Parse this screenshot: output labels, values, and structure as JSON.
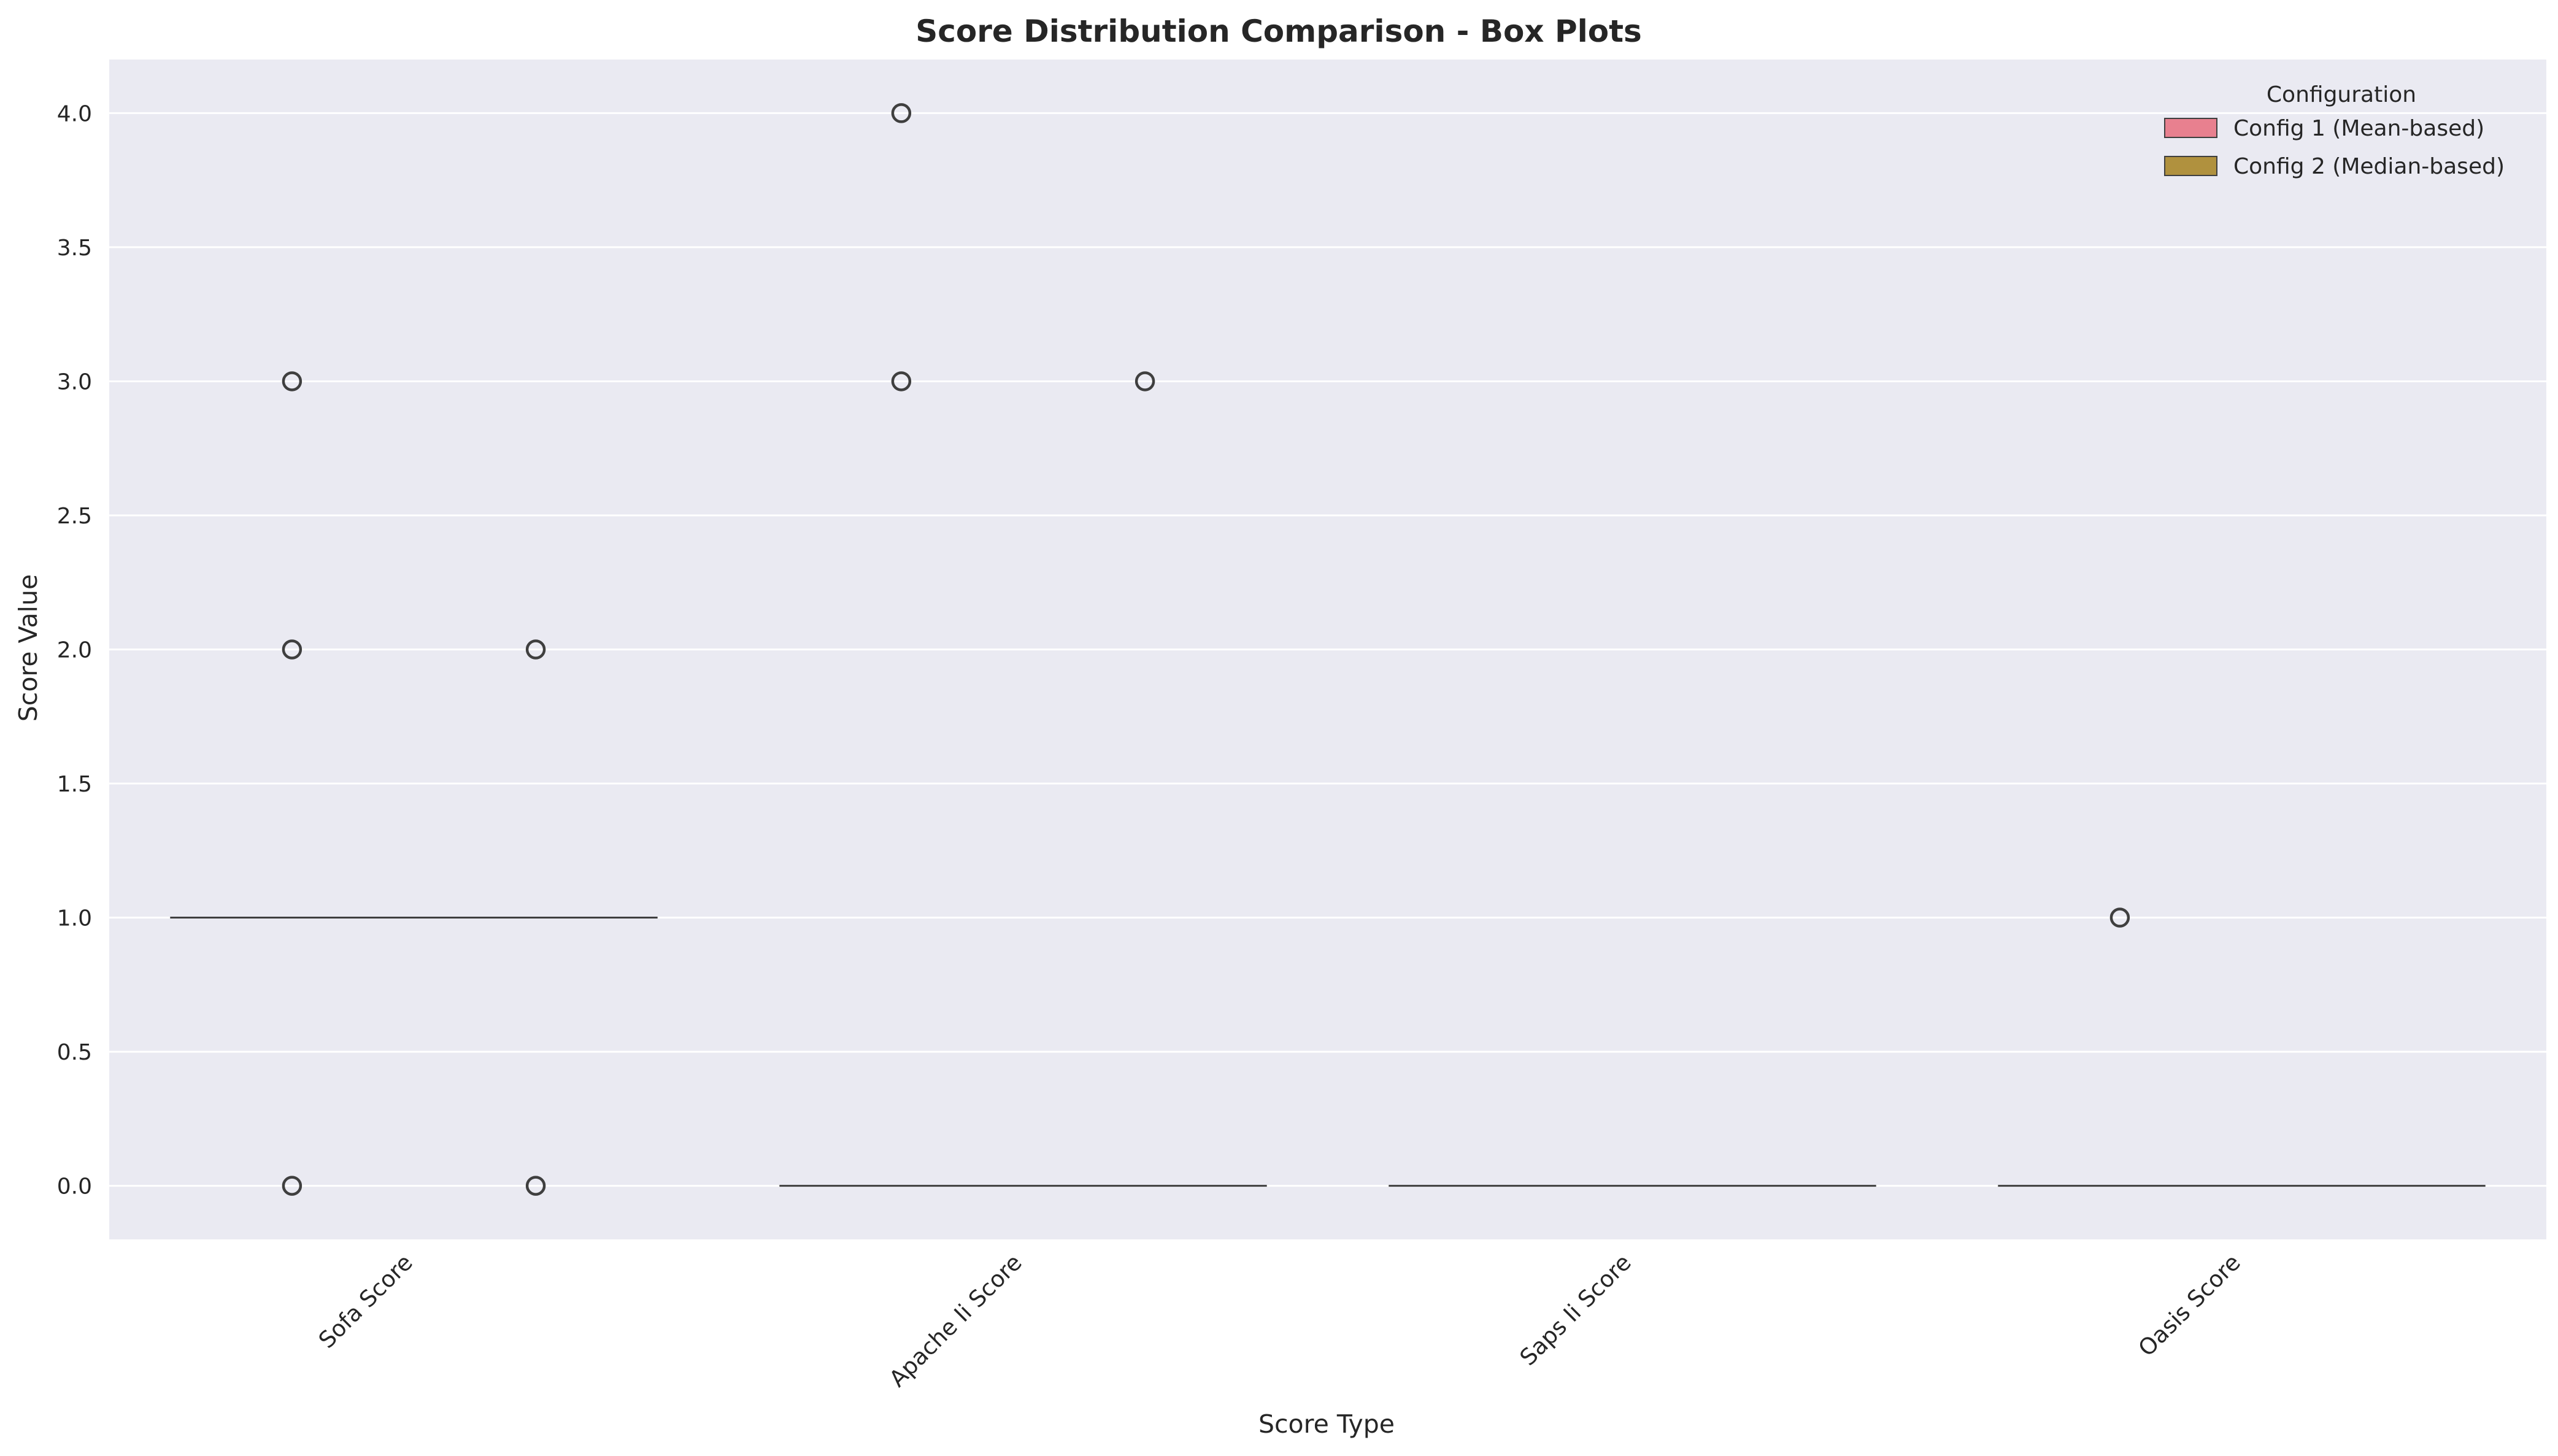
{
  "chart_data": {
    "type": "box",
    "title": "Score Distribution Comparison - Box Plots",
    "xlabel": "Score Type",
    "ylabel": "Score Value",
    "ylim": [
      -0.2,
      4.2
    ],
    "yticks": [
      0.0,
      0.5,
      1.0,
      1.5,
      2.0,
      2.5,
      3.0,
      3.5,
      4.0
    ],
    "ytick_labels": [
      "0.0",
      "0.5",
      "1.0",
      "1.5",
      "2.0",
      "2.5",
      "3.0",
      "3.5",
      "4.0"
    ],
    "categories": [
      "Sofa Score",
      "Apache Ii Score",
      "Saps Ii Score",
      "Oasis Score"
    ],
    "grid": true,
    "legend": {
      "title": "Configuration",
      "placement": "top-right"
    },
    "series": [
      {
        "name": "Config 1 (Mean-based)",
        "color": "#e8808f",
        "boxes": [
          {
            "q1": 1.0,
            "median": 1.0,
            "q3": 1.0,
            "whisker_low": 1.0,
            "whisker_high": 1.0,
            "outliers": [
              0.0,
              2.0,
              3.0
            ]
          },
          {
            "q1": 0.0,
            "median": 0.0,
            "q3": 0.0,
            "whisker_low": 0.0,
            "whisker_high": 0.0,
            "outliers": [
              3.0,
              4.0
            ]
          },
          {
            "q1": 0.0,
            "median": 0.0,
            "q3": 0.0,
            "whisker_low": 0.0,
            "whisker_high": 0.0,
            "outliers": []
          },
          {
            "q1": 0.0,
            "median": 0.0,
            "q3": 0.0,
            "whisker_low": 0.0,
            "whisker_high": 0.0,
            "outliers": [
              1.0
            ]
          }
        ]
      },
      {
        "name": "Config 2 (Median-based)",
        "color": "#b0913e",
        "boxes": [
          {
            "q1": 1.0,
            "median": 1.0,
            "q3": 1.0,
            "whisker_low": 1.0,
            "whisker_high": 1.0,
            "outliers": [
              0.0,
              2.0
            ]
          },
          {
            "q1": 0.0,
            "median": 0.0,
            "q3": 0.0,
            "whisker_low": 0.0,
            "whisker_high": 0.0,
            "outliers": [
              3.0
            ]
          },
          {
            "q1": 0.0,
            "median": 0.0,
            "q3": 0.0,
            "whisker_low": 0.0,
            "whisker_high": 0.0,
            "outliers": []
          },
          {
            "q1": 0.0,
            "median": 0.0,
            "q3": 0.0,
            "whisker_low": 0.0,
            "whisker_high": 0.0,
            "outliers": []
          }
        ]
      }
    ],
    "colors": {
      "plot_background": "#eaeaf2",
      "grid": "#ffffff",
      "line": "#3f3f3f",
      "text": "#262626"
    }
  }
}
